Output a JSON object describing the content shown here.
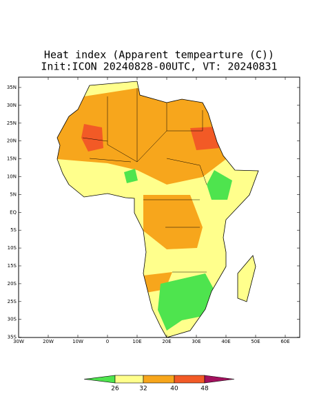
{
  "title": "Heat index (Apparent tempearture (C))",
  "subtitle": "Init:ICON 20240828-00UTC, VT: 20240831",
  "lat_labels": [
    "35N",
    "30N",
    "25N",
    "20N",
    "15N",
    "10N",
    "5N",
    "EQ",
    "5S",
    "10S",
    "15S",
    "20S",
    "25S",
    "30S",
    "35S"
  ],
  "lon_labels": [
    "30W",
    "20W",
    "10W",
    "0",
    "10E",
    "20E",
    "30E",
    "40E",
    "50E",
    "60E"
  ],
  "colorbar": {
    "ticks": [
      26,
      32,
      40,
      48
    ],
    "colors": [
      "#4ee44e",
      "#ffff8c",
      "#f7a61c",
      "#f25a26",
      "#a3115e"
    ]
  }
}
